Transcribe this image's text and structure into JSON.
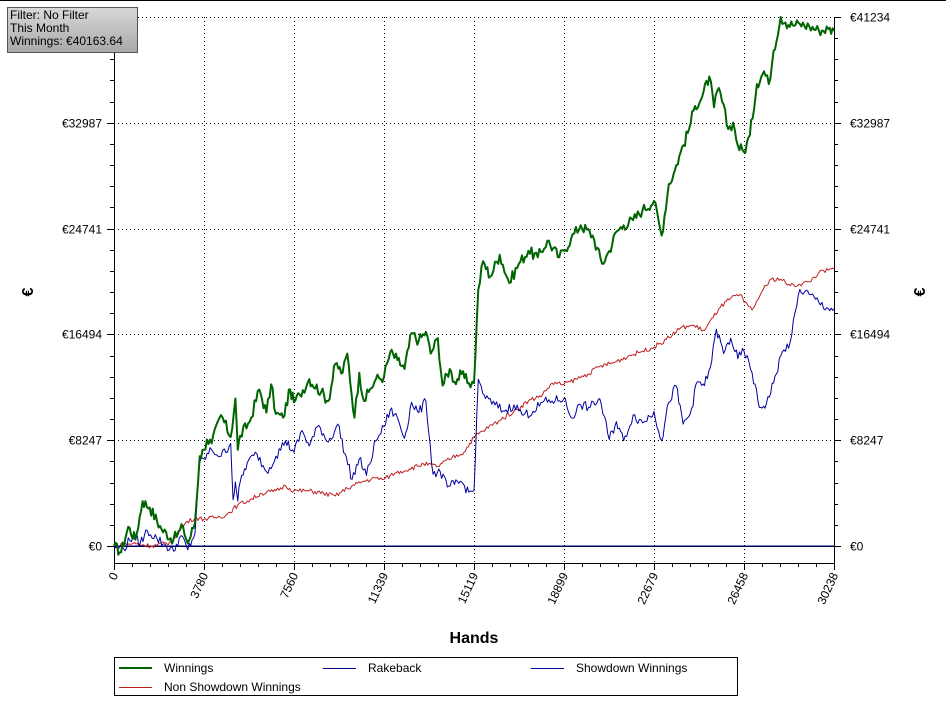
{
  "info_box": {
    "filter": "Filter: No Filter",
    "period": "This Month",
    "winnings": "Winnings: €40163.64"
  },
  "chart_data": {
    "type": "line",
    "xlabel": "Hands",
    "ylabel_left": "€",
    "ylabel_right": "€",
    "xlim": [
      0,
      30238
    ],
    "ylim": [
      -1200,
      41234
    ],
    "x_ticks": [
      0,
      3780,
      7560,
      11339,
      15119,
      18899,
      22679,
      26458,
      30238
    ],
    "y_ticks": [
      0,
      8247,
      16494,
      24741,
      32987,
      41234
    ],
    "y_tick_labels": [
      "€0",
      "€8247",
      "€16494",
      "€24741",
      "€32987",
      "€41234"
    ],
    "grid": true,
    "legend_position": "bottom",
    "series": [
      {
        "name": "Winnings",
        "color": "#006400",
        "x": [
          0,
          300,
          600,
          900,
          1200,
          1500,
          2000,
          2500,
          2900,
          3100,
          3400,
          3600,
          3780,
          3900,
          4100,
          4500,
          4900,
          5100,
          5200,
          5300,
          5700,
          6100,
          6400,
          6600,
          6800,
          7100,
          7400,
          7560,
          7800,
          8200,
          8700,
          9000,
          9300,
          9600,
          9800,
          10100,
          10300,
          10500,
          10700,
          11000,
          11339,
          11600,
          11900,
          12200,
          12500,
          12800,
          13100,
          13300,
          13600,
          13800,
          14100,
          14300,
          14600,
          14900,
          15119,
          15300,
          15500,
          15800,
          16200,
          16600,
          17000,
          17400,
          17800,
          18200,
          18700,
          18899,
          19200,
          19600,
          20100,
          20500,
          20800,
          21100,
          21400,
          21800,
          22200,
          22679,
          23000,
          23300,
          23500,
          23800,
          24100,
          24400,
          24700,
          25000,
          25200,
          25400,
          25800,
          26000,
          26200,
          26458,
          26700,
          27000,
          27300,
          27500,
          27700,
          28000,
          28200,
          28500,
          28800,
          29200,
          29600,
          30000,
          30238
        ],
        "values": [
          0,
          -500,
          1500,
          500,
          3500,
          3000,
          1300,
          500,
          1500,
          200,
          1800,
          7000,
          7500,
          8300,
          8000,
          10200,
          8500,
          11500,
          7500,
          8600,
          9700,
          12200,
          10400,
          12600,
          10300,
          10000,
          12200,
          11200,
          11800,
          13000,
          12000,
          11300,
          14200,
          13500,
          15000,
          10000,
          13500,
          11300,
          12000,
          13000,
          13200,
          15100,
          14500,
          13800,
          16600,
          16000,
          16700,
          15000,
          16200,
          12500,
          13800,
          12800,
          13400,
          12700,
          12700,
          20000,
          22200,
          21000,
          22700,
          20500,
          22000,
          23000,
          22500,
          23800,
          22500,
          23000,
          24000,
          25000,
          24200,
          22000,
          23000,
          24500,
          25000,
          25400,
          26200,
          26900,
          24200,
          28200,
          29000,
          30700,
          32200,
          34300,
          35000,
          36600,
          34200,
          35700,
          32500,
          33000,
          31200,
          30700,
          32000,
          36000,
          37000,
          36000,
          38600,
          41234,
          40800,
          40600,
          40700,
          40500,
          40200,
          40300,
          40163.64
        ]
      },
      {
        "name": "Rakeback",
        "color": "#000080",
        "x": [
          0,
          30238
        ],
        "values": [
          0,
          0
        ]
      },
      {
        "name": "Showdown Winnings",
        "color": "#0000a0",
        "x": [
          0,
          400,
          800,
          1100,
          1400,
          1800,
          2200,
          2500,
          2800,
          3100,
          3400,
          3600,
          3780,
          4100,
          4500,
          4900,
          5000,
          5100,
          5200,
          5300,
          5600,
          6000,
          6400,
          6800,
          7200,
          7560,
          7900,
          8200,
          8600,
          9000,
          9400,
          9700,
          10000,
          10300,
          10600,
          11000,
          11339,
          11600,
          11900,
          12200,
          12500,
          12800,
          13100,
          13400,
          13700,
          14000,
          14300,
          14600,
          14900,
          15119,
          15300,
          15600,
          16000,
          16400,
          16800,
          17200,
          17600,
          18000,
          18400,
          18899,
          19200,
          19600,
          20000,
          20400,
          20800,
          21100,
          21400,
          21800,
          22200,
          22679,
          23000,
          23300,
          23600,
          23900,
          24200,
          24500,
          24800,
          25100,
          25300,
          25600,
          25900,
          26200,
          26458,
          26800,
          27100,
          27400,
          27700,
          28000,
          28400,
          28800,
          29200,
          29600,
          30000,
          30238
        ],
        "values": [
          0,
          -200,
          800,
          200,
          1200,
          600,
          0,
          -400,
          800,
          -300,
          1000,
          6500,
          6800,
          7500,
          7000,
          8000,
          3600,
          5000,
          3500,
          5000,
          6500,
          7200,
          5800,
          7000,
          8200,
          7300,
          9000,
          7800,
          9400,
          8100,
          9500,
          7200,
          5200,
          6800,
          5500,
          8200,
          9300,
          10600,
          10000,
          8400,
          11200,
          10400,
          11300,
          5600,
          5800,
          4600,
          4800,
          5000,
          4200,
          4300,
          13000,
          11500,
          11000,
          10500,
          11000,
          10200,
          10500,
          11200,
          11300,
          11500,
          10000,
          11000,
          10800,
          11500,
          8300,
          9700,
          8200,
          10200,
          9600,
          10500,
          8200,
          11200,
          12500,
          9500,
          10300,
          12800,
          12500,
          14400,
          16900,
          15000,
          16200,
          14600,
          15200,
          13500,
          10800,
          11100,
          12700,
          14800,
          15900,
          20000,
          19600,
          19000,
          18500,
          18500
        ]
      },
      {
        "name": "Non Showdown Winnings",
        "color": "#c02020",
        "x": [
          0,
          800,
          1600,
          2400,
          3000,
          3400,
          3780,
          4200,
          4700,
          5200,
          5600,
          6200,
          6800,
          7200,
          7560,
          8200,
          8800,
          9300,
          9800,
          10400,
          11000,
          11339,
          11800,
          12400,
          13000,
          13600,
          14200,
          14700,
          15119,
          15600,
          16200,
          16800,
          17400,
          18000,
          18400,
          18899,
          19400,
          19900,
          20400,
          21000,
          21600,
          22200,
          22679,
          23200,
          23800,
          24300,
          24800,
          25400,
          25900,
          26300,
          26458,
          26800,
          27200,
          27600,
          28000,
          28400,
          28800,
          29200,
          29600,
          30000,
          30238
        ],
        "values": [
          0,
          200,
          0,
          300,
          1800,
          2200,
          2100,
          2200,
          2400,
          3200,
          3500,
          4100,
          4300,
          4700,
          4300,
          4300,
          4100,
          3900,
          4500,
          5000,
          5300,
          5200,
          5700,
          6000,
          6400,
          6200,
          6900,
          7300,
          8500,
          9100,
          9800,
          10500,
          11300,
          11800,
          12700,
          12600,
          13000,
          13400,
          14000,
          14300,
          14800,
          15200,
          15500,
          16100,
          17000,
          17200,
          16800,
          18500,
          19300,
          19600,
          19000,
          18400,
          19800,
          20800,
          20800,
          20300,
          20400,
          20600,
          21300,
          21500,
          21600
        ]
      }
    ]
  },
  "legend": {
    "winnings": "Winnings",
    "rakeback": "Rakeback",
    "showdown": "Showdown Winnings",
    "non_showdown": "Non Showdown Winnings"
  }
}
